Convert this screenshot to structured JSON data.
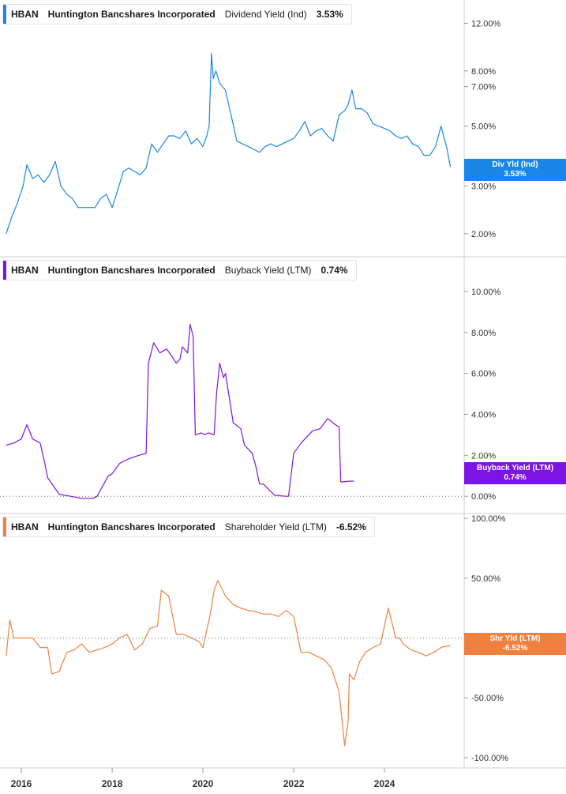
{
  "colors": {
    "panel1": "#1a87e8",
    "panel2": "#7c14e6",
    "panel3": "#f08040",
    "grid": "#e6e6e6"
  },
  "panels": [
    {
      "ticker": "HBAN",
      "company": "Huntington Bancshares Incorporated",
      "metric": "Dividend Yield (Ind)",
      "value": "3.53%",
      "badge_label": "Div Yld (Ind)",
      "badge_value": "3.53%"
    },
    {
      "ticker": "HBAN",
      "company": "Huntington Bancshares Incorporated",
      "metric": "Buyback Yield (LTM)",
      "value": "0.74%",
      "badge_label": "Buyback Yield (LTM)",
      "badge_value": "0.74%"
    },
    {
      "ticker": "HBAN",
      "company": "Huntington Bancshares Incorporated",
      "metric": "Shareholder Yield (LTM)",
      "value": "-6.52%",
      "badge_label": "Shr Yld (LTM)",
      "badge_value": "-6.52%"
    }
  ],
  "x_ticks": [
    "2016",
    "2018",
    "2020",
    "2022",
    "2024"
  ],
  "chart_data": [
    {
      "type": "line",
      "title": "HBAN Huntington Bancshares Incorporated Dividend Yield (Ind)",
      "yscale": "log",
      "ylim": [
        1.7,
        13.5
      ],
      "y_ticks": [
        {
          "value": 12,
          "label": "12.00%"
        },
        {
          "value": 8,
          "label": "8.00%"
        },
        {
          "value": 7,
          "label": "7.00%"
        },
        {
          "value": 5,
          "label": "5.00%"
        },
        {
          "value": 3,
          "label": "3.00%"
        },
        {
          "value": 2,
          "label": "2.00%"
        }
      ],
      "series": [
        {
          "name": "Dividend Yield (Ind)",
          "x": [
            "2015-09-01",
            "2015-10-15",
            "2015-12-01",
            "2016-01-15",
            "2016-02-15",
            "2016-04-01",
            "2016-05-15",
            "2016-06-30",
            "2016-08-15",
            "2016-10-01",
            "2016-11-15",
            "2017-01-01",
            "2017-02-15",
            "2017-04-01",
            "2017-05-15",
            "2017-06-30",
            "2017-08-15",
            "2017-10-01",
            "2017-11-15",
            "2018-01-01",
            "2018-02-15",
            "2018-04-01",
            "2018-05-15",
            "2018-06-30",
            "2018-08-15",
            "2018-10-01",
            "2018-11-15",
            "2019-01-01",
            "2019-02-15",
            "2019-04-01",
            "2019-05-15",
            "2019-06-30",
            "2019-08-15",
            "2019-10-01",
            "2019-11-15",
            "2020-01-01",
            "2020-02-01",
            "2020-02-20",
            "2020-03-10",
            "2020-03-25",
            "2020-04-15",
            "2020-05-15",
            "2020-06-30",
            "2020-08-15",
            "2020-10-01",
            "2020-11-15",
            "2021-01-01",
            "2021-02-15",
            "2021-04-01",
            "2021-05-15",
            "2021-06-30",
            "2021-08-15",
            "2021-10-01",
            "2021-11-15",
            "2022-01-01",
            "2022-02-15",
            "2022-04-01",
            "2022-05-15",
            "2022-06-30",
            "2022-08-15",
            "2022-10-01",
            "2022-11-15",
            "2023-01-01",
            "2023-02-15",
            "2023-03-15",
            "2023-04-15",
            "2023-05-15",
            "2023-06-30",
            "2023-08-15",
            "2023-10-01",
            "2023-11-15",
            "2024-01-01",
            "2024-02-15",
            "2024-04-01",
            "2024-05-15",
            "2024-06-30",
            "2024-08-15",
            "2024-10-01",
            "2024-11-15",
            "2025-01-01",
            "2025-02-15",
            "2025-04-01",
            "2025-04-20",
            "2025-05-15",
            "2025-06-15"
          ],
          "y": [
            2.0,
            2.3,
            2.6,
            3.0,
            3.6,
            3.2,
            3.3,
            3.1,
            3.3,
            3.7,
            3.0,
            2.8,
            2.7,
            2.5,
            2.5,
            2.5,
            2.5,
            2.7,
            2.8,
            2.5,
            2.9,
            3.4,
            3.5,
            3.4,
            3.3,
            3.5,
            4.3,
            4.0,
            4.3,
            4.6,
            4.6,
            4.5,
            4.8,
            4.3,
            4.5,
            4.2,
            4.6,
            5.0,
            9.3,
            7.5,
            8.0,
            7.2,
            6.8,
            5.5,
            4.4,
            4.3,
            4.2,
            4.1,
            4.0,
            4.2,
            4.3,
            4.2,
            4.3,
            4.4,
            4.5,
            4.8,
            5.2,
            4.6,
            4.8,
            4.9,
            4.6,
            4.4,
            5.5,
            5.7,
            6.0,
            6.8,
            5.8,
            5.8,
            5.6,
            5.1,
            5.0,
            4.9,
            4.8,
            4.6,
            4.5,
            4.6,
            4.3,
            4.2,
            3.9,
            3.9,
            4.2,
            5.0,
            4.6,
            4.2,
            3.53
          ]
        }
      ]
    },
    {
      "type": "line",
      "title": "HBAN Huntington Bancshares Incorporated Buyback Yield (LTM)",
      "ylim": [
        -0.3,
        10.5
      ],
      "y_ticks": [
        {
          "value": 10,
          "label": "10.00%"
        },
        {
          "value": 8,
          "label": "8.00%"
        },
        {
          "value": 6,
          "label": "6.00%"
        },
        {
          "value": 4,
          "label": "4.00%"
        },
        {
          "value": 2,
          "label": "2.00%"
        },
        {
          "value": 0,
          "label": "0.00%"
        }
      ],
      "series": [
        {
          "name": "Buyback Yield (LTM)",
          "x": [
            "2015-09-01",
            "2015-11-01",
            "2016-01-01",
            "2016-02-15",
            "2016-04-01",
            "2016-06-01",
            "2016-07-01",
            "2016-08-01",
            "2016-11-01",
            "2017-02-01",
            "2017-05-01",
            "2017-08-01",
            "2017-09-01",
            "2017-12-01",
            "2018-01-01",
            "2018-03-01",
            "2018-05-01",
            "2018-08-01",
            "2018-10-01",
            "2018-10-20",
            "2018-12-01",
            "2019-01-20",
            "2019-03-15",
            "2019-05-01",
            "2019-06-01",
            "2019-07-01",
            "2019-07-20",
            "2019-09-01",
            "2019-09-20",
            "2019-10-15",
            "2019-11-01",
            "2019-12-20",
            "2020-01-15",
            "2020-02-15",
            "2020-04-01",
            "2020-04-20",
            "2020-05-15",
            "2020-06-15",
            "2020-07-01",
            "2020-09-01",
            "2020-11-01",
            "2020-12-01",
            "2021-02-01",
            "2021-03-01",
            "2021-04-01",
            "2021-05-01",
            "2021-08-01",
            "2021-11-01",
            "2021-11-20",
            "2022-01-01",
            "2022-03-01",
            "2022-06-01",
            "2022-08-01",
            "2022-10-01",
            "2022-12-01",
            "2023-01-01",
            "2023-01-15",
            "2023-04-01",
            "2023-05-01"
          ],
          "y": [
            2.5,
            2.6,
            2.8,
            3.5,
            2.8,
            2.6,
            1.8,
            0.9,
            0.1,
            0.0,
            -0.1,
            -0.1,
            0.0,
            1.0,
            1.1,
            1.6,
            1.8,
            2.0,
            2.1,
            6.5,
            7.5,
            7.0,
            7.2,
            6.8,
            6.5,
            6.7,
            7.3,
            7.0,
            8.4,
            7.8,
            3.0,
            3.1,
            3.0,
            3.1,
            3.0,
            5.0,
            6.5,
            5.8,
            6.0,
            3.6,
            3.3,
            2.5,
            2.1,
            1.5,
            0.6,
            0.6,
            0.05,
            0.0,
            0.0,
            2.1,
            2.6,
            3.2,
            3.3,
            3.8,
            3.5,
            3.4,
            0.7,
            0.74,
            0.74
          ]
        }
      ]
    },
    {
      "type": "line",
      "title": "HBAN Huntington Bancshares Incorporated Shareholder Yield (LTM)",
      "ylim": [
        -108,
        110
      ],
      "y_ticks": [
        {
          "value": 100,
          "label": "100.00%"
        },
        {
          "value": 50,
          "label": "50.00%"
        },
        {
          "value": 0,
          "label": "0.00%"
        },
        {
          "value": -50,
          "label": "-50.00%"
        },
        {
          "value": -100,
          "label": "-100.00%"
        }
      ],
      "series": [
        {
          "name": "Shareholder Yield (LTM)",
          "x": [
            "2015-09-01",
            "2015-10-01",
            "2015-11-01",
            "2016-02-01",
            "2016-04-01",
            "2016-06-01",
            "2016-08-01",
            "2016-09-01",
            "2016-11-01",
            "2017-01-01",
            "2017-03-01",
            "2017-05-01",
            "2017-07-01",
            "2017-09-01",
            "2017-11-01",
            "2018-01-01",
            "2018-03-01",
            "2018-05-01",
            "2018-07-01",
            "2018-09-01",
            "2018-11-01",
            "2019-01-01",
            "2019-02-01",
            "2019-04-01",
            "2019-06-01",
            "2019-08-01",
            "2019-10-01",
            "2019-12-01",
            "2020-01-01",
            "2020-03-01",
            "2020-04-01",
            "2020-05-01",
            "2020-07-01",
            "2020-09-01",
            "2020-11-01",
            "2021-01-01",
            "2021-03-01",
            "2021-05-01",
            "2021-07-01",
            "2021-09-01",
            "2021-11-01",
            "2022-01-01",
            "2022-03-01",
            "2022-05-01",
            "2022-07-01",
            "2022-09-01",
            "2022-11-01",
            "2023-01-01",
            "2023-02-15",
            "2023-03-15",
            "2023-03-25",
            "2023-05-01",
            "2023-06-15",
            "2023-08-01",
            "2023-10-01",
            "2023-12-01",
            "2024-02-01",
            "2024-04-01",
            "2024-05-01",
            "2024-06-01",
            "2024-08-01",
            "2024-10-01",
            "2024-12-01",
            "2025-02-01",
            "2025-04-01",
            "2025-05-01",
            "2025-06-15"
          ],
          "y": [
            -15,
            15,
            0,
            0,
            0,
            -8,
            -8,
            -30,
            -28,
            -12,
            -10,
            -5,
            -12,
            -10,
            -8,
            -5,
            0,
            3,
            -10,
            -5,
            8,
            10,
            40,
            35,
            3,
            3,
            0,
            -3,
            -8,
            20,
            40,
            48,
            35,
            28,
            25,
            23,
            22,
            20,
            20,
            18,
            23,
            18,
            -12,
            -12,
            -15,
            -18,
            -25,
            -45,
            -90,
            -70,
            -30,
            -35,
            -20,
            -12,
            -8,
            -5,
            25,
            0,
            0,
            -5,
            -10,
            -12,
            -15,
            -12,
            -8,
            -7,
            -6.52
          ]
        }
      ]
    }
  ]
}
